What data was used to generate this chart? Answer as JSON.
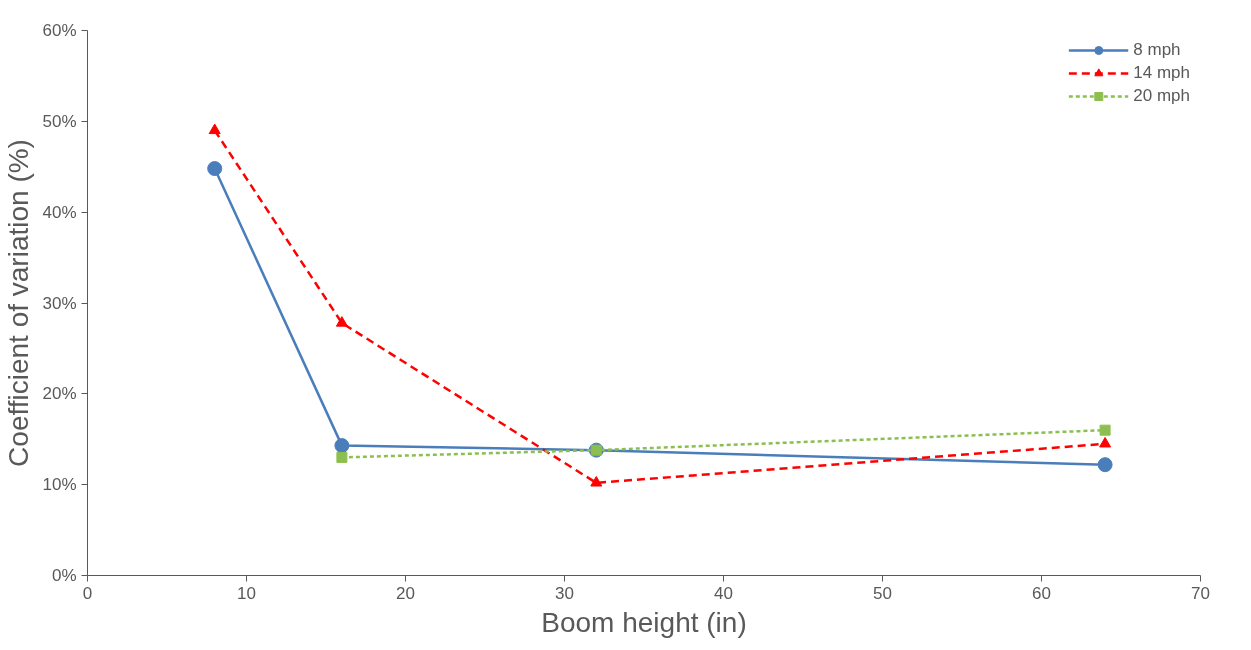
{
  "chart_data": {
    "type": "line",
    "xlabel": "Boom height (in)",
    "ylabel": "Coefficient of variation (%)",
    "xlim": [
      0,
      70
    ],
    "xticks": [
      0,
      10,
      20,
      30,
      40,
      50,
      60,
      70
    ],
    "ylim": [
      0,
      60
    ],
    "yticks": [
      {
        "value": 0,
        "label": "0%"
      },
      {
        "value": 10,
        "label": "10%"
      },
      {
        "value": 20,
        "label": "20%"
      },
      {
        "value": 30,
        "label": "30%"
      },
      {
        "value": 40,
        "label": "40%"
      },
      {
        "value": 50,
        "label": "50%"
      },
      {
        "value": 60,
        "label": "60%"
      }
    ],
    "grid": false,
    "legend": "top right",
    "series": [
      {
        "name": "8 mph",
        "color": "#4a7ebb",
        "x": [
          8,
          16,
          32,
          64
        ],
        "values": [
          44.8,
          14.3,
          13.8,
          12.2
        ],
        "marker": "circle",
        "line_style": "solid"
      },
      {
        "name": "14 mph",
        "color": "#ff0000",
        "x": [
          8,
          16,
          32,
          64
        ],
        "values": [
          49.0,
          27.8,
          10.2,
          14.5
        ],
        "marker": "triangle",
        "line_style": "dashed"
      },
      {
        "name": "20 mph",
        "color": "#8cbf4f",
        "x": [
          16,
          32,
          64
        ],
        "values": [
          13.0,
          13.8,
          16.0
        ],
        "marker": "square",
        "line_style": "dotted"
      }
    ]
  }
}
